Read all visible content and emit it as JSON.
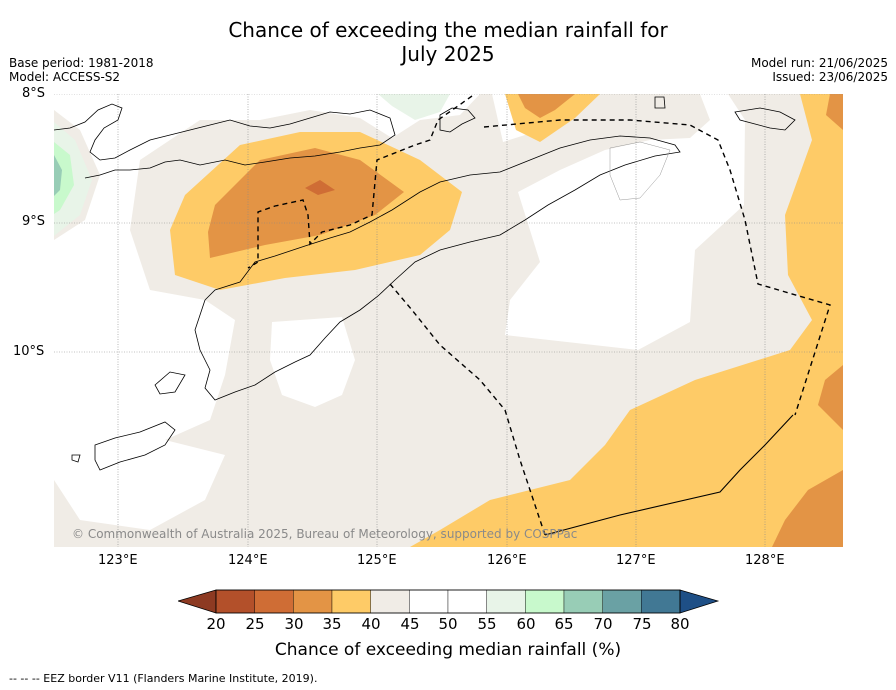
{
  "title_line1": "Chance of exceeding the median rainfall for",
  "title_line2": "July 2025",
  "meta_left": {
    "base_period": "Base period: 1981-2018",
    "model": "Model: ACCESS-S2"
  },
  "meta_right": {
    "model_run": "Model run: 21/06/2025",
    "issued": "Issued: 23/06/2025"
  },
  "lat_labels": [
    "8°S",
    "9°S",
    "10°S"
  ],
  "lon_labels": [
    "123°E",
    "124°E",
    "125°E",
    "126°E",
    "127°E",
    "128°E"
  ],
  "copyright": "© Commonwealth of Australia 2025, Bureau of Meteorology, supported by COSPPac",
  "colorbar": {
    "title": "Chance of exceeding median rainfall (%)",
    "ticks": [
      "20",
      "25",
      "30",
      "35",
      "40",
      "45",
      "50",
      "55",
      "60",
      "65",
      "70",
      "75",
      "80"
    ],
    "colors": [
      "#b3502a",
      "#cf6d35",
      "#e39445",
      "#fecb67",
      "#f0ece6",
      "#ffffff",
      "#ffffff",
      "#e8f4e8",
      "#c8f9cc",
      "#98cdb6",
      "#6aa1a4",
      "#417894"
    ],
    "under_color": "#8d3a22",
    "over_color": "#1e4f86"
  },
  "footnote": "--  --  -- EEZ border V11 (Flanders Marine Institute, 2019)."
}
